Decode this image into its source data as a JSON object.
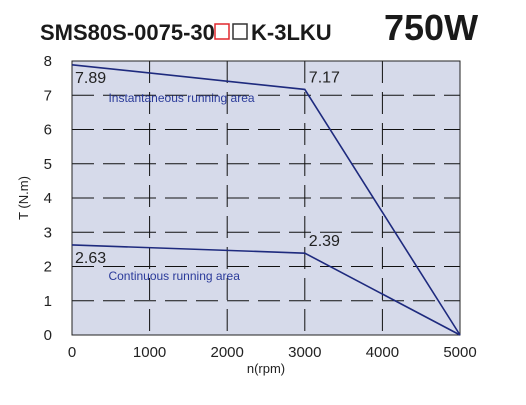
{
  "title": {
    "model_prefix": "SMS80S-0075-30",
    "model_suffix": "K-3LKU",
    "placeholder_box_color": "#e0282e",
    "power": "750W"
  },
  "colors": {
    "plot_background": "#d6daea",
    "series_line": "#1e2a7e",
    "grid": "#111111",
    "area_text": "#2a3a9a"
  },
  "chart_data": {
    "type": "line",
    "title": "SMS80S-0075-30□□K-3LKU 750W",
    "xlabel": "n(rpm)",
    "ylabel": "T (N.m)",
    "xlim": [
      0,
      5000
    ],
    "ylim": [
      0,
      8
    ],
    "x_ticks": [
      0,
      1000,
      2000,
      3000,
      4000,
      5000
    ],
    "y_ticks": [
      0,
      1,
      2,
      3,
      4,
      5,
      6,
      7,
      8
    ],
    "grid": true,
    "grid_style": "dashed",
    "series": [
      {
        "x": [
          0,
          3000,
          5000
        ],
        "y": [
          7.89,
          7.17,
          0
        ]
      },
      {
        "x": [
          0,
          3000,
          5000
        ],
        "y": [
          2.63,
          2.39,
          0
        ]
      }
    ],
    "value_labels": [
      {
        "text": "7.89",
        "x": 0,
        "y": 7.89
      },
      {
        "text": "7.17",
        "x": 3000,
        "y": 7.17
      },
      {
        "text": "2.63",
        "x": 0,
        "y": 2.63
      },
      {
        "text": "2.39",
        "x": 3000,
        "y": 2.39
      }
    ],
    "annotations": [
      {
        "text": "Instantaneous running area"
      },
      {
        "text": "Continuous running area"
      }
    ]
  }
}
